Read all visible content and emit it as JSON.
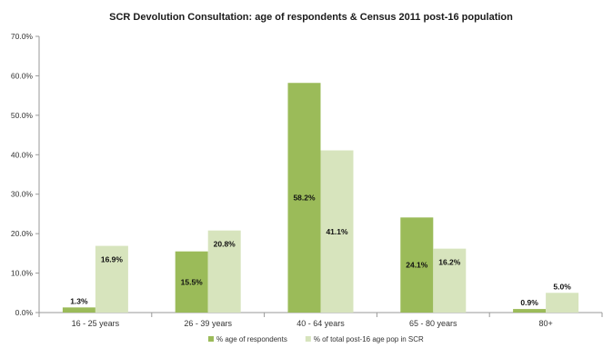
{
  "chart_data": {
    "type": "bar",
    "title": "SCR Devolution Consultation: age of respondents & Census 2011 post-16 population",
    "categories": [
      "16 - 25 years",
      "26 - 39 years",
      "40 - 64 years",
      "65 - 80 years",
      "80+"
    ],
    "ylim": [
      0,
      70
    ],
    "yticks": [
      0,
      10,
      20,
      30,
      40,
      50,
      60,
      70
    ],
    "ytick_labels": [
      "0.0%",
      "10.0%",
      "20.0%",
      "30.0%",
      "40.0%",
      "50.0%",
      "60.0%",
      "70.0%"
    ],
    "xlabel": "",
    "ylabel": "",
    "grid": false,
    "legend_position": "bottom",
    "series": [
      {
        "name": "% age of respondents",
        "values": [
          1.3,
          15.5,
          58.2,
          24.1,
          0.9
        ],
        "labels": [
          "1.3%",
          "15.5%",
          "58.2%",
          "24.1%",
          "0.9%"
        ],
        "color": "#9bbb59"
      },
      {
        "name": "% of total post-16 age pop in SCR",
        "values": [
          16.9,
          20.8,
          41.1,
          16.2,
          5.0
        ],
        "labels": [
          "16.9%",
          "20.8%",
          "41.1%",
          "16.2%",
          "5.0%"
        ],
        "color": "#d7e4bd"
      }
    ]
  }
}
